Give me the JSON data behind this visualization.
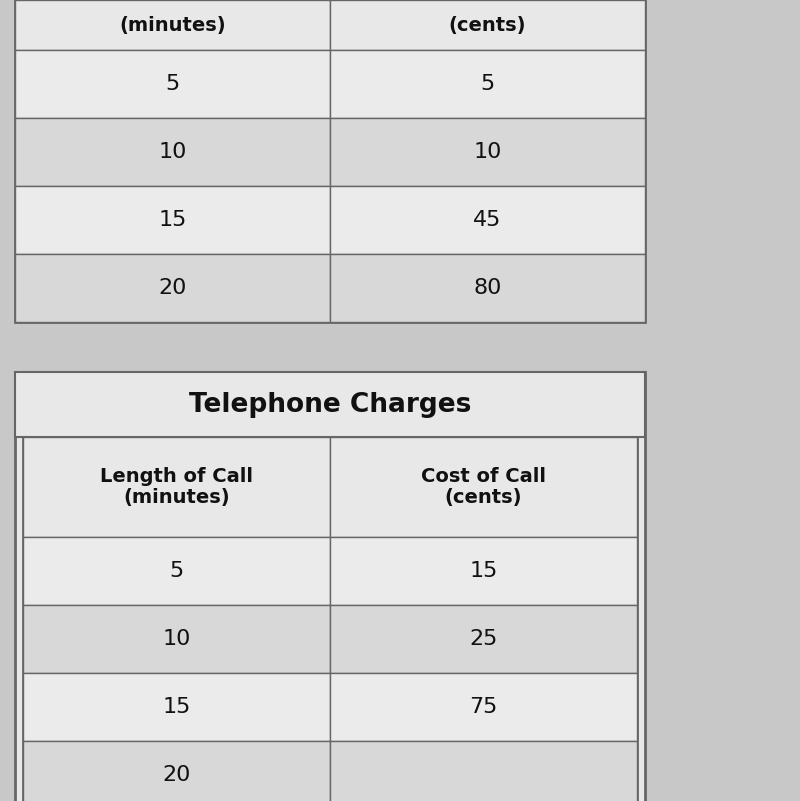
{
  "table1": {
    "header": [
      "(minutes)",
      "(cents)"
    ],
    "rows": [
      [
        "5",
        "5"
      ],
      [
        "10",
        "10"
      ],
      [
        "15",
        "45"
      ],
      [
        "20",
        "80"
      ]
    ]
  },
  "table2": {
    "title": "Telephone Charges",
    "header": [
      "Length of Call\n(minutes)",
      "Cost of Call\n(cents)"
    ],
    "rows": [
      [
        "5",
        "15"
      ],
      [
        "10",
        "25"
      ],
      [
        "15",
        "75"
      ],
      [
        "20",
        ""
      ]
    ]
  },
  "bg_color": "#c8c8c8",
  "table_outer_bg": "#e8e8e8",
  "header_bg": "#e0e0e0",
  "cell_bg_light": "#ebebeb",
  "cell_bg_dark": "#d8d8d8",
  "border_color": "#666666",
  "text_color": "#111111",
  "title_fontsize": 19,
  "header_fontsize": 14,
  "data_fontsize": 16
}
